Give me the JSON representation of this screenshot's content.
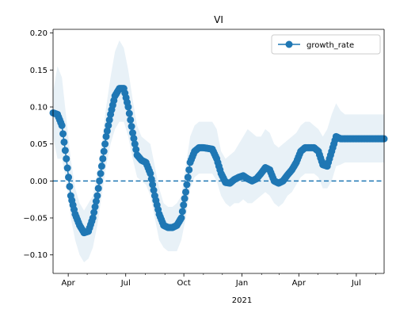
{
  "chart_data": {
    "type": "line",
    "title": "VI",
    "xlabel": "",
    "ylabel": "",
    "x_axis_kind": "date",
    "xlim": [
      "2020-03-08",
      "2021-08-14"
    ],
    "ylim": [
      -0.125,
      0.205
    ],
    "y_ticks": [
      -0.1,
      -0.05,
      0.0,
      0.05,
      0.1,
      0.15,
      0.2
    ],
    "y_tick_labels": [
      "−0.10",
      "−0.05",
      "0.00",
      "0.05",
      "0.10",
      "0.15",
      "0.20"
    ],
    "x_ticks": [
      {
        "date": "2020-04-01",
        "label": "Apr"
      },
      {
        "date": "2020-07-01",
        "label": "Jul"
      },
      {
        "date": "2020-10-01",
        "label": "Oct"
      },
      {
        "date": "2021-01-01",
        "label": "Jan",
        "sublabel": "2021"
      },
      {
        "date": "2021-04-01",
        "label": "Apr"
      },
      {
        "date": "2021-07-01",
        "label": "Jul"
      }
    ],
    "legend": {
      "position": "top-right",
      "entries": [
        "growth_rate"
      ]
    },
    "grid": false,
    "reference_line": {
      "y": 0.0,
      "style": "dashed"
    },
    "colors": {
      "series": "#1f77b4",
      "band": "#1f77b4"
    },
    "series": [
      {
        "name": "growth_rate",
        "points": [
          {
            "x": "2020-03-08",
            "y": 0.092,
            "lower": 0.06,
            "upper": 0.12
          },
          {
            "x": "2020-03-15",
            "y": 0.09,
            "lower": 0.03,
            "upper": 0.155
          },
          {
            "x": "2020-03-22",
            "y": 0.075,
            "lower": 0.03,
            "upper": 0.14
          },
          {
            "x": "2020-03-29",
            "y": 0.03,
            "lower": 0.0,
            "upper": 0.085
          },
          {
            "x": "2020-04-05",
            "y": -0.02,
            "lower": -0.05,
            "upper": 0.03
          },
          {
            "x": "2020-04-12",
            "y": -0.045,
            "lower": -0.08,
            "upper": -0.01
          },
          {
            "x": "2020-04-19",
            "y": -0.06,
            "lower": -0.1,
            "upper": -0.03
          },
          {
            "x": "2020-04-26",
            "y": -0.07,
            "lower": -0.11,
            "upper": -0.04
          },
          {
            "x": "2020-05-03",
            "y": -0.068,
            "lower": -0.105,
            "upper": -0.03
          },
          {
            "x": "2020-05-10",
            "y": -0.05,
            "lower": -0.09,
            "upper": -0.02
          },
          {
            "x": "2020-05-17",
            "y": -0.02,
            "lower": -0.06,
            "upper": 0.01
          },
          {
            "x": "2020-05-24",
            "y": 0.02,
            "lower": -0.02,
            "upper": 0.05
          },
          {
            "x": "2020-05-31",
            "y": 0.06,
            "lower": 0.02,
            "upper": 0.1
          },
          {
            "x": "2020-06-07",
            "y": 0.09,
            "lower": 0.05,
            "upper": 0.14
          },
          {
            "x": "2020-06-14",
            "y": 0.115,
            "lower": 0.07,
            "upper": 0.175
          },
          {
            "x": "2020-06-21",
            "y": 0.125,
            "lower": 0.08,
            "upper": 0.19
          },
          {
            "x": "2020-06-28",
            "y": 0.125,
            "lower": 0.08,
            "upper": 0.18
          },
          {
            "x": "2020-07-05",
            "y": 0.1,
            "lower": 0.06,
            "upper": 0.15
          },
          {
            "x": "2020-07-12",
            "y": 0.065,
            "lower": 0.03,
            "upper": 0.11
          },
          {
            "x": "2020-07-19",
            "y": 0.035,
            "lower": 0.005,
            "upper": 0.075
          },
          {
            "x": "2020-07-26",
            "y": 0.028,
            "lower": 0.0,
            "upper": 0.06
          },
          {
            "x": "2020-08-02",
            "y": 0.025,
            "lower": -0.005,
            "upper": 0.055
          },
          {
            "x": "2020-08-09",
            "y": 0.01,
            "lower": -0.02,
            "upper": 0.05
          },
          {
            "x": "2020-08-16",
            "y": -0.02,
            "lower": -0.05,
            "upper": 0.02
          },
          {
            "x": "2020-08-23",
            "y": -0.045,
            "lower": -0.08,
            "upper": -0.01
          },
          {
            "x": "2020-08-30",
            "y": -0.06,
            "lower": -0.09,
            "upper": -0.03
          },
          {
            "x": "2020-09-06",
            "y": -0.063,
            "lower": -0.095,
            "upper": -0.035
          },
          {
            "x": "2020-09-13",
            "y": -0.063,
            "lower": -0.095,
            "upper": -0.035
          },
          {
            "x": "2020-09-20",
            "y": -0.06,
            "lower": -0.095,
            "upper": -0.03
          },
          {
            "x": "2020-09-27",
            "y": -0.05,
            "lower": -0.08,
            "upper": -0.02
          },
          {
            "x": "2020-10-04",
            "y": -0.015,
            "lower": -0.05,
            "upper": 0.02
          },
          {
            "x": "2020-10-11",
            "y": 0.025,
            "lower": -0.01,
            "upper": 0.06
          },
          {
            "x": "2020-10-18",
            "y": 0.04,
            "lower": 0.005,
            "upper": 0.075
          },
          {
            "x": "2020-10-25",
            "y": 0.045,
            "lower": 0.01,
            "upper": 0.08
          },
          {
            "x": "2020-11-01",
            "y": 0.045,
            "lower": 0.01,
            "upper": 0.08
          },
          {
            "x": "2020-11-08",
            "y": 0.044,
            "lower": 0.01,
            "upper": 0.08
          },
          {
            "x": "2020-11-15",
            "y": 0.043,
            "lower": 0.01,
            "upper": 0.08
          },
          {
            "x": "2020-11-22",
            "y": 0.03,
            "lower": 0.0,
            "upper": 0.07
          },
          {
            "x": "2020-11-29",
            "y": 0.01,
            "lower": -0.02,
            "upper": 0.04
          },
          {
            "x": "2020-12-06",
            "y": -0.002,
            "lower": -0.03,
            "upper": 0.03
          },
          {
            "x": "2020-12-13",
            "y": -0.003,
            "lower": -0.035,
            "upper": 0.035
          },
          {
            "x": "2020-12-20",
            "y": 0.002,
            "lower": -0.03,
            "upper": 0.04
          },
          {
            "x": "2020-12-27",
            "y": 0.005,
            "lower": -0.03,
            "upper": 0.05
          },
          {
            "x": "2021-01-03",
            "y": 0.007,
            "lower": -0.025,
            "upper": 0.06
          },
          {
            "x": "2021-01-10",
            "y": 0.003,
            "lower": -0.03,
            "upper": 0.07
          },
          {
            "x": "2021-01-17",
            "y": 0.0,
            "lower": -0.03,
            "upper": 0.065
          },
          {
            "x": "2021-01-24",
            "y": 0.003,
            "lower": -0.025,
            "upper": 0.06
          },
          {
            "x": "2021-01-31",
            "y": 0.01,
            "lower": -0.02,
            "upper": 0.06
          },
          {
            "x": "2021-02-07",
            "y": 0.018,
            "lower": -0.015,
            "upper": 0.07
          },
          {
            "x": "2021-02-14",
            "y": 0.015,
            "lower": -0.02,
            "upper": 0.065
          },
          {
            "x": "2021-02-21",
            "y": 0.0,
            "lower": -0.03,
            "upper": 0.05
          },
          {
            "x": "2021-02-28",
            "y": -0.003,
            "lower": -0.035,
            "upper": 0.045
          },
          {
            "x": "2021-03-07",
            "y": 0.0,
            "lower": -0.03,
            "upper": 0.05
          },
          {
            "x": "2021-03-14",
            "y": 0.008,
            "lower": -0.02,
            "upper": 0.055
          },
          {
            "x": "2021-03-21",
            "y": 0.015,
            "lower": -0.015,
            "upper": 0.06
          },
          {
            "x": "2021-03-28",
            "y": 0.025,
            "lower": -0.005,
            "upper": 0.065
          },
          {
            "x": "2021-04-04",
            "y": 0.04,
            "lower": 0.005,
            "upper": 0.075
          },
          {
            "x": "2021-04-11",
            "y": 0.045,
            "lower": 0.01,
            "upper": 0.08
          },
          {
            "x": "2021-04-18",
            "y": 0.045,
            "lower": 0.01,
            "upper": 0.08
          },
          {
            "x": "2021-04-25",
            "y": 0.045,
            "lower": 0.01,
            "upper": 0.075
          },
          {
            "x": "2021-05-02",
            "y": 0.04,
            "lower": 0.005,
            "upper": 0.07
          },
          {
            "x": "2021-05-09",
            "y": 0.022,
            "lower": -0.01,
            "upper": 0.06
          },
          {
            "x": "2021-05-16",
            "y": 0.02,
            "lower": -0.01,
            "upper": 0.07
          },
          {
            "x": "2021-05-23",
            "y": 0.04,
            "lower": 0.0,
            "upper": 0.09
          },
          {
            "x": "2021-05-30",
            "y": 0.06,
            "lower": 0.02,
            "upper": 0.105
          },
          {
            "x": "2021-06-06",
            "y": 0.057,
            "lower": 0.022,
            "upper": 0.095
          },
          {
            "x": "2021-06-13",
            "y": 0.057,
            "lower": 0.025,
            "upper": 0.09
          },
          {
            "x": "2021-06-20",
            "y": 0.057,
            "lower": 0.025,
            "upper": 0.09
          },
          {
            "x": "2021-06-27",
            "y": 0.057,
            "lower": 0.025,
            "upper": 0.09
          },
          {
            "x": "2021-07-04",
            "y": 0.057,
            "lower": 0.025,
            "upper": 0.09
          },
          {
            "x": "2021-07-11",
            "y": 0.057,
            "lower": 0.025,
            "upper": 0.09
          },
          {
            "x": "2021-07-18",
            "y": 0.057,
            "lower": 0.025,
            "upper": 0.09
          },
          {
            "x": "2021-07-25",
            "y": 0.057,
            "lower": 0.025,
            "upper": 0.09
          },
          {
            "x": "2021-08-01",
            "y": 0.057,
            "lower": 0.025,
            "upper": 0.09
          },
          {
            "x": "2021-08-08",
            "y": 0.057,
            "lower": 0.025,
            "upper": 0.09
          },
          {
            "x": "2021-08-14",
            "y": 0.057,
            "lower": 0.025,
            "upper": 0.09
          }
        ]
      }
    ]
  }
}
